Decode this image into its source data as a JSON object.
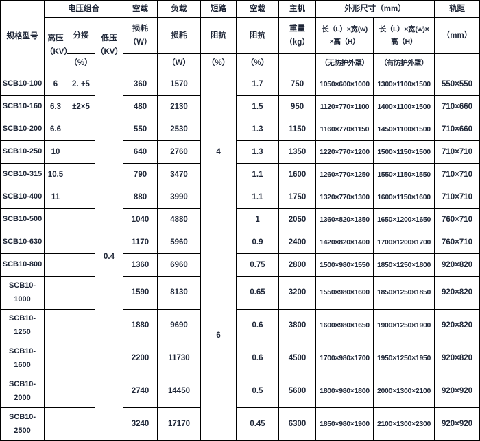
{
  "table": {
    "header": {
      "model": "规格型号",
      "voltage_group": "电压组合",
      "hv": "高压\n（KV）",
      "tap": "分接",
      "tap_unit": "（%）",
      "lv": "低压\n（KV）",
      "no_load": "空载",
      "no_load_loss": "损耗\n（W）",
      "load": "负载",
      "load_loss": "损耗",
      "load_loss_unit": "（W）",
      "short_circuit": "短路",
      "impedance": "阻抗",
      "impedance_unit": "（%）",
      "no_load2": "空载",
      "no_load_impedance": "阻抗",
      "no_load_impedance_unit": "（%）",
      "main_unit": "主机",
      "weight": "重量\n（kg）",
      "dimensions": "外形尺寸（mm）",
      "dim_formula_no_cover": "长（L）×宽(w)\n×高（H）",
      "dim_formula_with_cover": "长（L）×宽(w)×\n高（H）",
      "dim_no_cover": "（无防护外罩）",
      "dim_with_cover": "（有防护外罩）",
      "gauge": "轨距",
      "gauge_unit": "（mm）"
    },
    "merged": {
      "lv_value": "0.4",
      "short_circuit_impedance_1": "4",
      "short_circuit_impedance_2": "6"
    },
    "rows": [
      {
        "model": "SCB10-100",
        "hv": "6",
        "tap": "2. +5",
        "no_load_loss": "360",
        "load_loss": "1570",
        "no_load_impedance": "1.7",
        "weight": "750",
        "dims_no_cover": "1050×600×1000",
        "dims_with_cover": "1300×1100×1500",
        "gauge": "550×550"
      },
      {
        "model": "SCB10-160",
        "hv": "6.3",
        "tap": "±2×5",
        "no_load_loss": "480",
        "load_loss": "2130",
        "no_load_impedance": "1.5",
        "weight": "950",
        "dims_no_cover": "1120×770×1100",
        "dims_with_cover": "1400×1100×1500",
        "gauge": "710×660"
      },
      {
        "model": "SCB10-200",
        "hv": "6.6",
        "tap": "",
        "no_load_loss": "550",
        "load_loss": "2530",
        "no_load_impedance": "1.3",
        "weight": "1150",
        "dims_no_cover": "1160×770×1150",
        "dims_with_cover": "1450×1100×1500",
        "gauge": "710×660"
      },
      {
        "model": "SCB10-250",
        "hv": "10",
        "tap": "",
        "no_load_loss": "640",
        "load_loss": "2760",
        "no_load_impedance": "1.3",
        "weight": "1350",
        "dims_no_cover": "1220×770×1200",
        "dims_with_cover": "1500×1150×1500",
        "gauge": "710×710"
      },
      {
        "model": "SCB10-315",
        "hv": "10.5",
        "tap": "",
        "no_load_loss": "790",
        "load_loss": "3470",
        "no_load_impedance": "1.1",
        "weight": "1600",
        "dims_no_cover": "1260×770×1250",
        "dims_with_cover": "1550×1150×1550",
        "gauge": "710×710"
      },
      {
        "model": "SCB10-400",
        "hv": "11",
        "tap": "",
        "no_load_loss": "880",
        "load_loss": "3990",
        "no_load_impedance": "1.1",
        "weight": "1750",
        "dims_no_cover": "1320×770×1300",
        "dims_with_cover": "1600×1150×1600",
        "gauge": "710×710"
      },
      {
        "model": "SCB10-500",
        "hv": "",
        "tap": "",
        "no_load_loss": "1040",
        "load_loss": "4880",
        "no_load_impedance": "1",
        "weight": "2050",
        "dims_no_cover": "1360×820×1350",
        "dims_with_cover": "1650×1200×1650",
        "gauge": "760×710"
      },
      {
        "model": "SCB10-630",
        "hv": "",
        "tap": "",
        "no_load_loss": "1170",
        "load_loss": "5960",
        "no_load_impedance": "0.9",
        "weight": "2400",
        "dims_no_cover": "1420×820×1400",
        "dims_with_cover": "1700×1200×1700",
        "gauge": "760×710"
      },
      {
        "model": "SCB10-800",
        "hv": "",
        "tap": "",
        "no_load_loss": "1360",
        "load_loss": "6960",
        "no_load_impedance": "0.75",
        "weight": "2800",
        "dims_no_cover": "1500×980×1550",
        "dims_with_cover": "1850×1250×1800",
        "gauge": "920×820"
      },
      {
        "model": "SCB10-\n1000",
        "hv": "",
        "tap": "",
        "no_load_loss": "1590",
        "load_loss": "8130",
        "no_load_impedance": "0.65",
        "weight": "3200",
        "dims_no_cover": "1550×980×1600",
        "dims_with_cover": "1850×1250×1850",
        "gauge": "920×820"
      },
      {
        "model": "SCB10-\n1250",
        "hv": "",
        "tap": "",
        "no_load_loss": "1880",
        "load_loss": "9690",
        "no_load_impedance": "0.6",
        "weight": "3800",
        "dims_no_cover": "1600×980×1650",
        "dims_with_cover": "1900×1250×1900",
        "gauge": "920×820"
      },
      {
        "model": "SCB10-\n1600",
        "hv": "",
        "tap": "",
        "no_load_loss": "2200",
        "load_loss": "11730",
        "no_load_impedance": "0.6",
        "weight": "4500",
        "dims_no_cover": "1700×980×1700",
        "dims_with_cover": "1950×1250×1950",
        "gauge": "920×820"
      },
      {
        "model": "SCB10-\n2000",
        "hv": "",
        "tap": "",
        "no_load_loss": "2740",
        "load_loss": "14450",
        "no_load_impedance": "0.5",
        "weight": "5600",
        "dims_no_cover": "1800×980×1800",
        "dims_with_cover": "2000×1300×2100",
        "gauge": "920×920"
      },
      {
        "model": "SCB10-\n2500",
        "hv": "",
        "tap": "",
        "no_load_loss": "3240",
        "load_loss": "17170",
        "no_load_impedance": "0.45",
        "weight": "6300",
        "dims_no_cover": "1850×980×1900",
        "dims_with_cover": "2100×1300×2300",
        "gauge": "920×920"
      }
    ]
  }
}
